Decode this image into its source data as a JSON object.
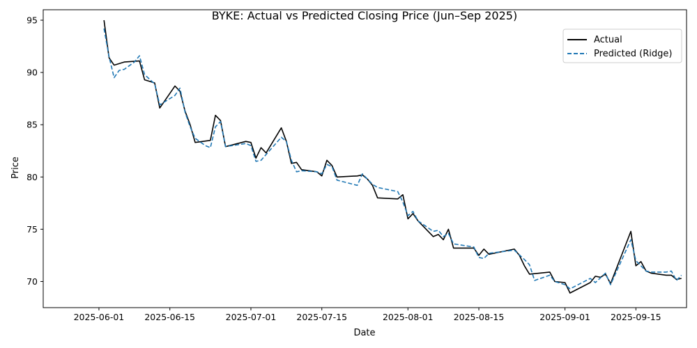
{
  "chart_data": {
    "type": "line",
    "title": "BYKE: Actual vs Predicted Closing Price (Jun–Sep 2025)",
    "xlabel": "Date",
    "ylabel": "Price",
    "xlim": [
      "2025-05-21",
      "2025-09-25"
    ],
    "ylim": [
      67.5,
      96.0
    ],
    "x_ticks": [
      "2025-06-01",
      "2025-06-15",
      "2025-07-01",
      "2025-07-15",
      "2025-08-01",
      "2025-08-15",
      "2025-09-01",
      "2025-09-15"
    ],
    "y_ticks": [
      70,
      75,
      80,
      85,
      90,
      95
    ],
    "grid": false,
    "legend_position": "top-right",
    "series": [
      {
        "name": "Actual",
        "color": "#000000",
        "style": "solid",
        "points": [
          [
            "2025-06-02",
            95.0
          ],
          [
            "2025-06-03",
            91.4
          ],
          [
            "2025-06-04",
            90.7
          ],
          [
            "2025-06-06",
            91.0
          ],
          [
            "2025-06-09",
            91.1
          ],
          [
            "2025-06-10",
            89.3
          ],
          [
            "2025-06-12",
            89.0
          ],
          [
            "2025-06-13",
            86.6
          ],
          [
            "2025-06-16",
            88.7
          ],
          [
            "2025-06-17",
            88.2
          ],
          [
            "2025-06-18",
            86.3
          ],
          [
            "2025-06-19",
            85.0
          ],
          [
            "2025-06-20",
            83.3
          ],
          [
            "2025-06-23",
            83.5
          ],
          [
            "2025-06-24",
            85.9
          ],
          [
            "2025-06-25",
            85.4
          ],
          [
            "2025-06-26",
            82.9
          ],
          [
            "2025-06-30",
            83.4
          ],
          [
            "2025-07-01",
            83.3
          ],
          [
            "2025-07-02",
            81.8
          ],
          [
            "2025-07-03",
            82.8
          ],
          [
            "2025-07-04",
            82.3
          ],
          [
            "2025-07-07",
            84.7
          ],
          [
            "2025-07-08",
            83.4
          ],
          [
            "2025-07-09",
            81.3
          ],
          [
            "2025-07-10",
            81.4
          ],
          [
            "2025-07-11",
            80.7
          ],
          [
            "2025-07-14",
            80.5
          ],
          [
            "2025-07-15",
            80.1
          ],
          [
            "2025-07-16",
            81.6
          ],
          [
            "2025-07-17",
            81.1
          ],
          [
            "2025-07-18",
            80.0
          ],
          [
            "2025-07-22",
            80.1
          ],
          [
            "2025-07-23",
            80.2
          ],
          [
            "2025-07-24",
            79.8
          ],
          [
            "2025-07-25",
            79.2
          ],
          [
            "2025-07-26",
            78.0
          ],
          [
            "2025-07-30",
            77.9
          ],
          [
            "2025-07-31",
            78.3
          ],
          [
            "2025-08-01",
            76.0
          ],
          [
            "2025-08-02",
            76.5
          ],
          [
            "2025-08-03",
            75.8
          ],
          [
            "2025-08-06",
            74.3
          ],
          [
            "2025-08-07",
            74.5
          ],
          [
            "2025-08-08",
            74.0
          ],
          [
            "2025-08-09",
            75.0
          ],
          [
            "2025-08-10",
            73.2
          ],
          [
            "2025-08-14",
            73.2
          ],
          [
            "2025-08-15",
            72.5
          ],
          [
            "2025-08-16",
            73.1
          ],
          [
            "2025-08-17",
            72.6
          ],
          [
            "2025-08-22",
            73.1
          ],
          [
            "2025-08-23",
            72.5
          ],
          [
            "2025-08-24",
            71.5
          ],
          [
            "2025-08-25",
            70.7
          ],
          [
            "2025-08-29",
            70.9
          ],
          [
            "2025-08-30",
            70.0
          ],
          [
            "2025-09-01",
            69.9
          ],
          [
            "2025-09-02",
            68.9
          ],
          [
            "2025-09-06",
            69.9
          ],
          [
            "2025-09-07",
            70.5
          ],
          [
            "2025-09-08",
            70.4
          ],
          [
            "2025-09-09",
            70.7
          ],
          [
            "2025-09-10",
            69.8
          ],
          [
            "2025-09-14",
            74.8
          ],
          [
            "2025-09-15",
            71.5
          ],
          [
            "2025-09-16",
            71.9
          ],
          [
            "2025-09-17",
            71.0
          ],
          [
            "2025-09-18",
            70.8
          ],
          [
            "2025-09-21",
            70.6
          ],
          [
            "2025-09-22",
            70.6
          ],
          [
            "2025-09-23",
            70.2
          ],
          [
            "2025-09-24",
            70.3
          ]
        ]
      },
      {
        "name": "Predicted (Ridge)",
        "color": "#1f77b4",
        "style": "dashed",
        "points": [
          [
            "2025-06-02",
            94.2
          ],
          [
            "2025-06-03",
            91.5
          ],
          [
            "2025-06-04",
            89.5
          ],
          [
            "2025-06-05",
            90.2
          ],
          [
            "2025-06-06",
            90.3
          ],
          [
            "2025-06-08",
            91.0
          ],
          [
            "2025-06-09",
            91.6
          ],
          [
            "2025-06-10",
            89.8
          ],
          [
            "2025-06-12",
            88.9
          ],
          [
            "2025-06-13",
            86.9
          ],
          [
            "2025-06-16",
            87.8
          ],
          [
            "2025-06-17",
            88.5
          ],
          [
            "2025-06-18",
            86.2
          ],
          [
            "2025-06-19",
            84.8
          ],
          [
            "2025-06-20",
            83.7
          ],
          [
            "2025-06-22",
            83.0
          ],
          [
            "2025-06-23",
            82.8
          ],
          [
            "2025-06-24",
            84.8
          ],
          [
            "2025-06-25",
            85.3
          ],
          [
            "2025-06-26",
            82.9
          ],
          [
            "2025-06-30",
            83.2
          ],
          [
            "2025-07-01",
            83.0
          ],
          [
            "2025-07-02",
            81.5
          ],
          [
            "2025-07-03",
            81.6
          ],
          [
            "2025-07-07",
            83.8
          ],
          [
            "2025-07-08",
            83.4
          ],
          [
            "2025-07-09",
            81.6
          ],
          [
            "2025-07-10",
            80.5
          ],
          [
            "2025-07-11",
            80.6
          ],
          [
            "2025-07-14",
            80.5
          ],
          [
            "2025-07-15",
            80.3
          ],
          [
            "2025-07-16",
            81.2
          ],
          [
            "2025-07-17",
            81.0
          ],
          [
            "2025-07-18",
            79.7
          ],
          [
            "2025-07-22",
            79.2
          ],
          [
            "2025-07-23",
            80.3
          ],
          [
            "2025-07-25",
            79.3
          ],
          [
            "2025-07-26",
            79.0
          ],
          [
            "2025-07-30",
            78.6
          ],
          [
            "2025-07-31",
            77.6
          ],
          [
            "2025-08-01",
            76.3
          ],
          [
            "2025-08-02",
            76.7
          ],
          [
            "2025-08-03",
            75.8
          ],
          [
            "2025-08-06",
            74.8
          ],
          [
            "2025-08-07",
            74.9
          ],
          [
            "2025-08-08",
            74.3
          ],
          [
            "2025-08-09",
            74.6
          ],
          [
            "2025-08-10",
            73.6
          ],
          [
            "2025-08-14",
            73.3
          ],
          [
            "2025-08-15",
            72.3
          ],
          [
            "2025-08-16",
            72.2
          ],
          [
            "2025-08-17",
            72.7
          ],
          [
            "2025-08-22",
            73.0
          ],
          [
            "2025-08-24",
            72.1
          ],
          [
            "2025-08-25",
            71.6
          ],
          [
            "2025-08-26",
            70.1
          ],
          [
            "2025-08-29",
            70.6
          ],
          [
            "2025-08-30",
            70.0
          ],
          [
            "2025-09-01",
            69.7
          ],
          [
            "2025-09-02",
            69.3
          ],
          [
            "2025-09-06",
            70.3
          ],
          [
            "2025-09-07",
            69.9
          ],
          [
            "2025-09-09",
            70.8
          ],
          [
            "2025-09-10",
            69.7
          ],
          [
            "2025-09-14",
            74.0
          ],
          [
            "2025-09-15",
            72.0
          ],
          [
            "2025-09-16",
            71.5
          ],
          [
            "2025-09-17",
            71.0
          ],
          [
            "2025-09-18",
            70.9
          ],
          [
            "2025-09-21",
            70.9
          ],
          [
            "2025-09-22",
            71.0
          ],
          [
            "2025-09-23",
            70.1
          ],
          [
            "2025-09-24",
            70.6
          ]
        ]
      }
    ]
  }
}
